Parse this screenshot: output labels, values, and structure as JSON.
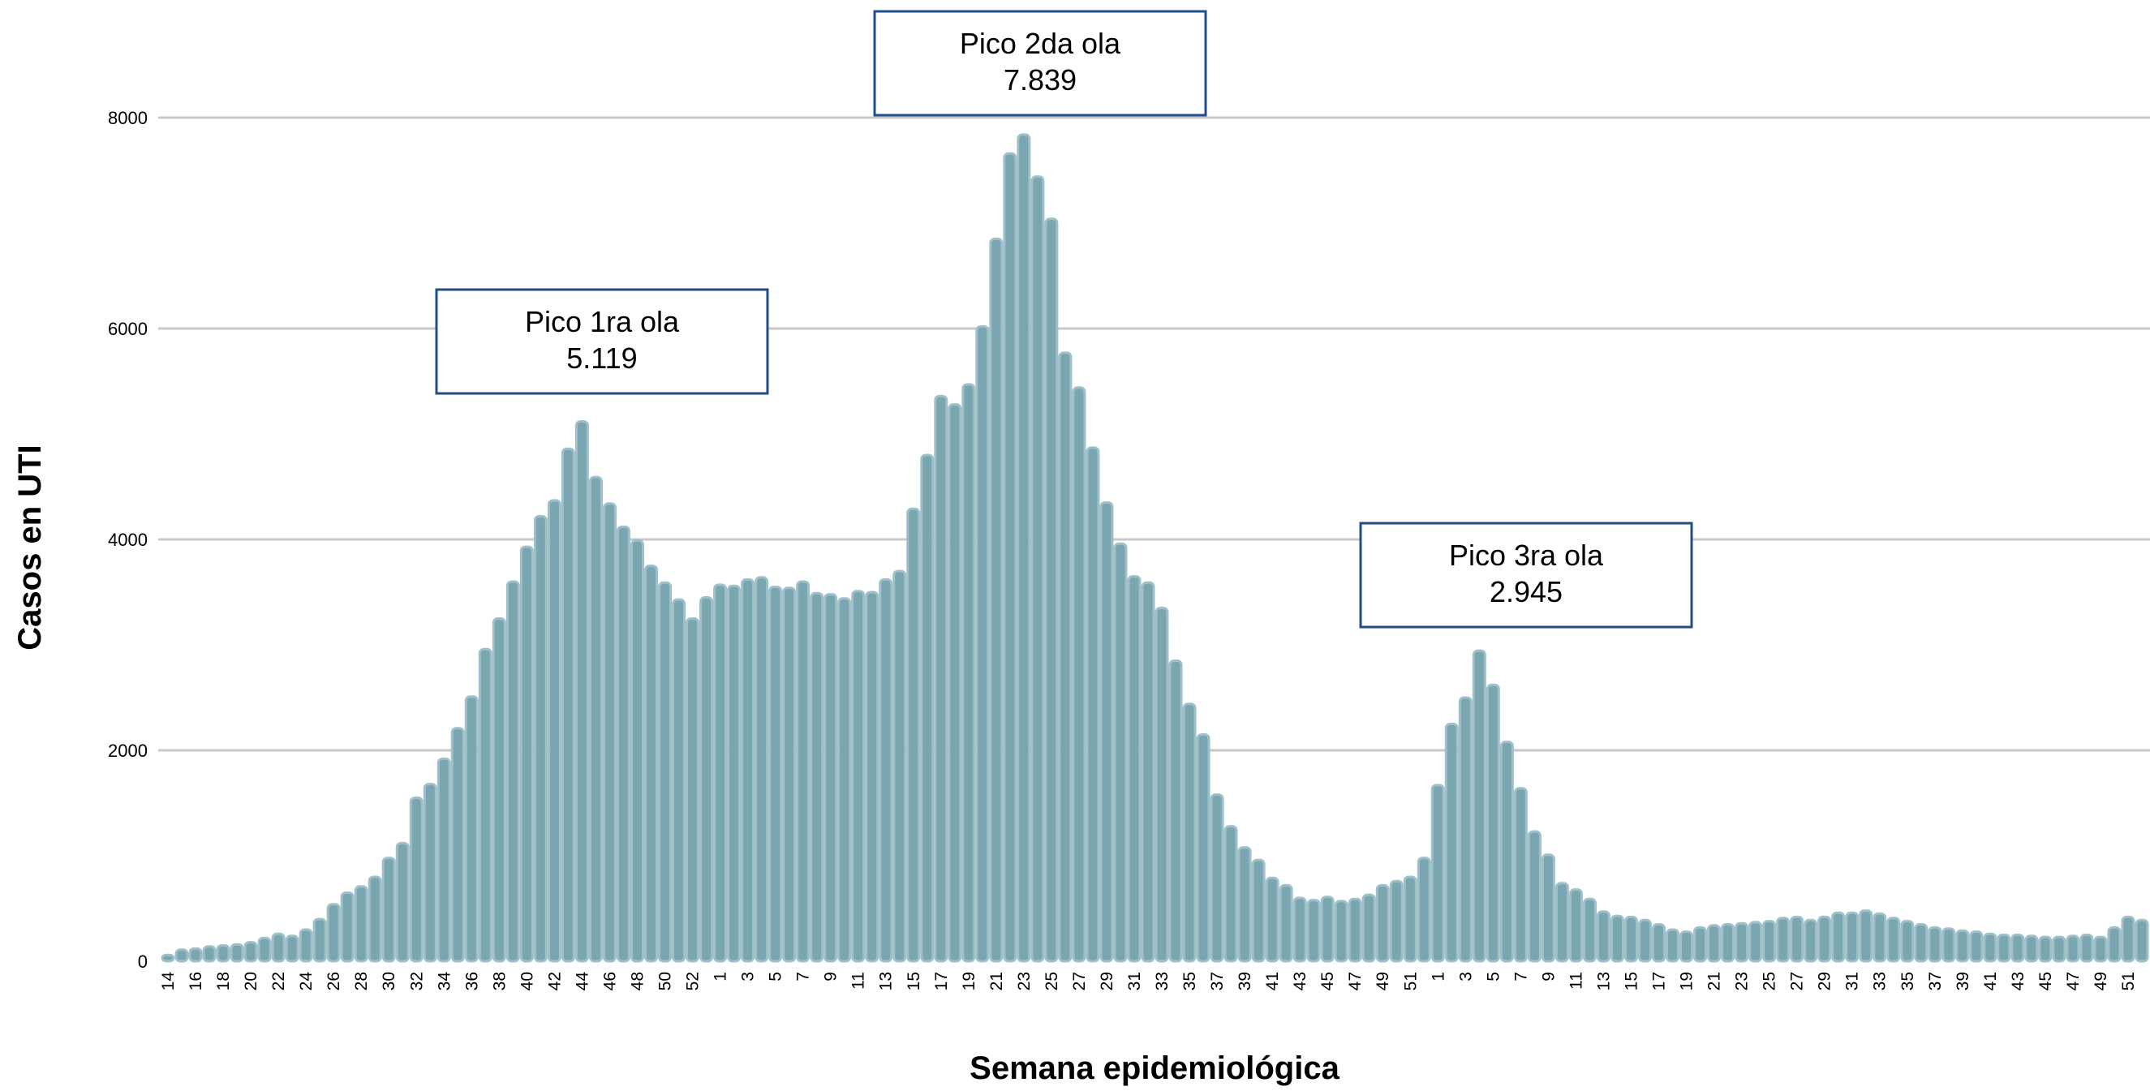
{
  "chart_data": {
    "type": "bar",
    "title": "",
    "xlabel": "Semana epidemiológica",
    "ylabel": "Casos en UTI",
    "ylim": [
      0,
      8000
    ],
    "yticks": [
      0,
      2000,
      4000,
      6000,
      8000
    ],
    "grid": true,
    "colors": {
      "bar_fill": "#7aa6b1",
      "bar_stroke": "#9fc0c9",
      "grid": "#c8c8c8",
      "annotation_border": "#1f4e8c"
    },
    "x": [
      "14",
      "15",
      "16",
      "17",
      "18",
      "19",
      "20",
      "21",
      "22",
      "23",
      "24",
      "25",
      "26",
      "27",
      "28",
      "29",
      "30",
      "31",
      "32",
      "33",
      "34",
      "35",
      "36",
      "37",
      "38",
      "39",
      "40",
      "41",
      "42",
      "43",
      "44",
      "45",
      "46",
      "47",
      "48",
      "49",
      "50",
      "51",
      "52",
      "53",
      "1",
      "2",
      "3",
      "4",
      "5",
      "6",
      "7",
      "8",
      "9",
      "10",
      "11",
      "12",
      "13",
      "14",
      "15",
      "16",
      "17",
      "18",
      "19",
      "20",
      "21",
      "22",
      "23",
      "24",
      "25",
      "26",
      "27",
      "28",
      "29",
      "30",
      "31",
      "32",
      "33",
      "34",
      "35",
      "36",
      "37",
      "38",
      "39",
      "40",
      "41",
      "42",
      "43",
      "44",
      "45",
      "46",
      "47",
      "48",
      "49",
      "50",
      "51",
      "52",
      "1",
      "2",
      "3",
      "4",
      "5",
      "6",
      "7",
      "8",
      "9",
      "10",
      "11",
      "12",
      "13",
      "14",
      "15",
      "16",
      "17",
      "18",
      "19",
      "20",
      "21",
      "22",
      "23",
      "24",
      "25",
      "26",
      "27",
      "28",
      "29",
      "30",
      "31",
      "32",
      "33",
      "34",
      "35",
      "36",
      "37",
      "38",
      "39",
      "40",
      "41",
      "42",
      "43",
      "44",
      "45",
      "46",
      "47",
      "48",
      "49",
      "50",
      "51",
      "52"
    ],
    "values": [
      60,
      110,
      120,
      140,
      150,
      160,
      180,
      220,
      260,
      240,
      300,
      400,
      540,
      650,
      710,
      800,
      980,
      1120,
      1550,
      1680,
      1920,
      2210,
      2510,
      2960,
      3250,
      3600,
      3930,
      4220,
      4370,
      4860,
      5119,
      4590,
      4340,
      4120,
      3990,
      3750,
      3590,
      3430,
      3250,
      3450,
      3570,
      3560,
      3620,
      3640,
      3550,
      3540,
      3600,
      3490,
      3480,
      3440,
      3510,
      3500,
      3620,
      3700,
      4290,
      4800,
      5360,
      5280,
      5470,
      6020,
      6850,
      7660,
      7839,
      7440,
      7040,
      5770,
      5440,
      4870,
      4350,
      3960,
      3650,
      3590,
      3350,
      2850,
      2440,
      2150,
      1580,
      1280,
      1080,
      960,
      790,
      720,
      600,
      580,
      610,
      570,
      590,
      630,
      720,
      760,
      800,
      980,
      1670,
      2250,
      2500,
      2945,
      2620,
      2080,
      1640,
      1230,
      1010,
      740,
      680,
      590,
      470,
      430,
      420,
      390,
      350,
      300,
      280,
      320,
      340,
      350,
      360,
      370,
      380,
      410,
      420,
      390,
      420,
      460,
      460,
      480,
      450,
      410,
      380,
      350,
      320,
      310,
      290,
      280,
      260,
      250,
      250,
      240,
      230,
      230,
      240,
      250,
      230,
      320,
      420,
      390
    ],
    "x_tick_labels_shown": [
      "14",
      "16",
      "18",
      "20",
      "22",
      "24",
      "26",
      "28",
      "30",
      "32",
      "34",
      "36",
      "38",
      "40",
      "42",
      "44",
      "46",
      "48",
      "50",
      "52",
      "1",
      "3",
      "5",
      "7",
      "9",
      "11",
      "13",
      "15",
      "17",
      "19",
      "21",
      "23",
      "25",
      "27",
      "29",
      "31",
      "33",
      "35",
      "37",
      "39",
      "41",
      "43",
      "45",
      "47",
      "49",
      "51",
      "1",
      "3",
      "5",
      "7",
      "9",
      "11",
      "13",
      "15",
      "17",
      "19",
      "21",
      "23",
      "25",
      "27",
      "29",
      "31",
      "33",
      "35",
      "37",
      "39",
      "41",
      "43",
      "45",
      "47",
      "49",
      "51"
    ],
    "annotations": [
      {
        "title": "Pico 1ra ola",
        "value": "5.119",
        "week_index": 30
      },
      {
        "title": "Pico 2da ola",
        "value": "7.839",
        "week_index": 62
      },
      {
        "title": "Pico 3ra ola",
        "value": "2.945",
        "week_index": 95
      }
    ]
  }
}
